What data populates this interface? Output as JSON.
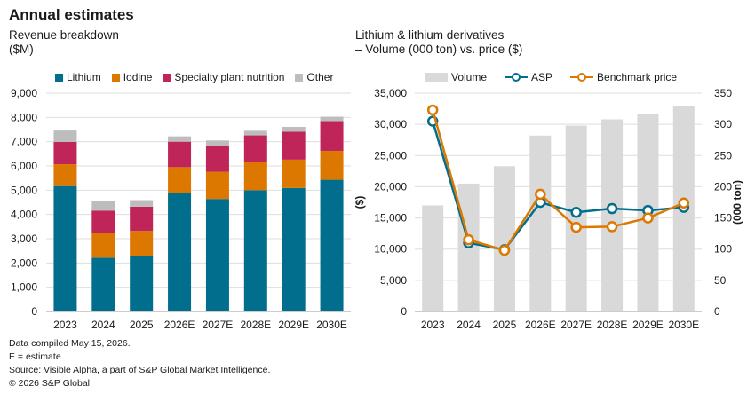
{
  "title": "Annual estimates",
  "left_subtitle": "Revenue breakdown\n($M)",
  "right_subtitle": "Lithium & lithium derivatives\n– Volume (000 ton) vs. price ($)",
  "notes": [
    "Data compiled May 15, 2026.",
    "E = estimate.",
    "Source: Visible Alpha, a part of S&P Global Market Intelligence.",
    "© 2026 S&P Global."
  ],
  "colors": {
    "lithium": "#006e8c",
    "iodine": "#dc7800",
    "specialty": "#c0255a",
    "other": "#bdbdbd",
    "volume": "#d9d9d9",
    "asp": "#006e8c",
    "benchmark": "#dc7800"
  },
  "chart_data": [
    {
      "type": "bar",
      "stacked": true,
      "title": "Revenue breakdown",
      "ylabel": "($M)",
      "categories": [
        "2023",
        "2024",
        "2025",
        "2026E",
        "2027E",
        "2028E",
        "2029E",
        "2030E"
      ],
      "series": [
        {
          "name": "Lithium",
          "values": [
            5170,
            2220,
            2280,
            4890,
            4640,
            5000,
            5090,
            5430
          ]
        },
        {
          "name": "Iodine",
          "values": [
            900,
            1010,
            1040,
            1060,
            1120,
            1180,
            1170,
            1190
          ]
        },
        {
          "name": "Specialty plant nutrition",
          "values": [
            920,
            930,
            1000,
            1050,
            1060,
            1080,
            1150,
            1230
          ]
        },
        {
          "name": "Other",
          "values": [
            470,
            380,
            270,
            220,
            230,
            190,
            200,
            180
          ]
        }
      ],
      "ylim": [
        0,
        9000
      ],
      "yticks": [
        "0",
        "1,000",
        "2,000",
        "3,000",
        "4,000",
        "5,000",
        "6,000",
        "7,000",
        "8,000",
        "9,000"
      ],
      "legend": "top",
      "grid": true
    },
    {
      "type": "bar+line",
      "title": "Lithium & lithium derivatives – Volume (000 ton) vs. price ($)",
      "categories": [
        "2023",
        "2024",
        "2025",
        "2026E",
        "2027E",
        "2028E",
        "2029E",
        "2030E"
      ],
      "bars": {
        "name": "Volume",
        "axis": "right",
        "values": [
          170,
          205,
          233,
          282,
          298,
          308,
          317,
          329
        ]
      },
      "lines": [
        {
          "name": "ASP",
          "axis": "left",
          "values": [
            30500,
            11000,
            9900,
            17500,
            15900,
            16500,
            16200,
            16700
          ]
        },
        {
          "name": "Benchmark price",
          "axis": "left",
          "values": [
            32300,
            11500,
            9800,
            18800,
            13500,
            13600,
            15000,
            17400
          ]
        }
      ],
      "ylabel_left": "($)",
      "ylabel_right": "(000 ton)",
      "ylim_left": [
        0,
        35000
      ],
      "ylim_right": [
        0,
        350
      ],
      "yticks_left": [
        "0",
        "5,000",
        "10,000",
        "15,000",
        "20,000",
        "25,000",
        "30,000",
        "35,000"
      ],
      "yticks_right": [
        "0",
        "50",
        "100",
        "150",
        "200",
        "250",
        "300",
        "350"
      ],
      "legend": "top",
      "grid": true
    }
  ]
}
